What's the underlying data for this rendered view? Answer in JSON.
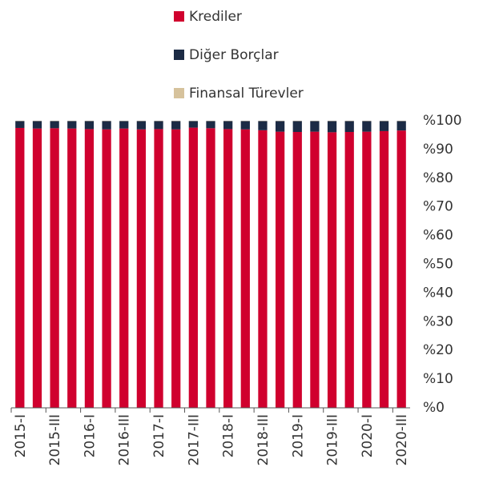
{
  "chart_data": {
    "type": "stacked_bar",
    "categories": [
      "2015-I",
      null,
      "2015-III",
      null,
      "2016-I",
      null,
      "2016-III",
      null,
      "2017-I",
      null,
      "2017-III",
      null,
      "2018-I",
      null,
      "2018-III",
      null,
      "2019-I",
      null,
      "2019-III",
      null,
      "2020-I",
      null,
      "2020-III"
    ],
    "series": [
      {
        "name": "Krediler",
        "color": "#d0002e",
        "values": [
          97.5,
          97.3,
          97.4,
          97.3,
          97.1,
          97.0,
          97.3,
          97.0,
          97.1,
          97.0,
          97.6,
          97.4,
          97.1,
          97.0,
          96.7,
          96.2,
          96.1,
          96.2,
          96.0,
          96.1,
          96.2,
          96.4,
          96.6
        ]
      },
      {
        "name": "Diğer Borçlar",
        "color": "#1c2b45",
        "values": [
          2.4,
          2.6,
          2.5,
          2.6,
          2.8,
          2.9,
          2.6,
          2.9,
          2.8,
          2.9,
          2.3,
          2.5,
          2.8,
          2.9,
          3.2,
          3.7,
          3.8,
          3.7,
          3.9,
          3.8,
          3.7,
          3.5,
          3.3
        ]
      },
      {
        "name": "Finansal Türevler",
        "color": "#d6c29c",
        "values": [
          0.1,
          0.1,
          0.1,
          0.1,
          0.1,
          0.1,
          0.1,
          0.1,
          0.1,
          0.1,
          0.1,
          0.1,
          0.1,
          0.1,
          0.1,
          0.1,
          0.1,
          0.1,
          0.1,
          0.1,
          0.1,
          0.1,
          0.1
        ]
      }
    ],
    "ylim": [
      0,
      100
    ],
    "yticks": [
      {
        "value": 0,
        "label": "%0"
      },
      {
        "value": 10,
        "label": "%10"
      },
      {
        "value": 20,
        "label": "%20"
      },
      {
        "value": 30,
        "label": "%30"
      },
      {
        "value": 40,
        "label": "%40"
      },
      {
        "value": 50,
        "label": "%50"
      },
      {
        "value": 60,
        "label": "%60"
      },
      {
        "value": 70,
        "label": "%70"
      },
      {
        "value": 80,
        "label": "%80"
      },
      {
        "value": 90,
        "label": "%90"
      },
      {
        "value": 100,
        "label": "%100"
      }
    ],
    "legend": "top",
    "grid": false
  }
}
